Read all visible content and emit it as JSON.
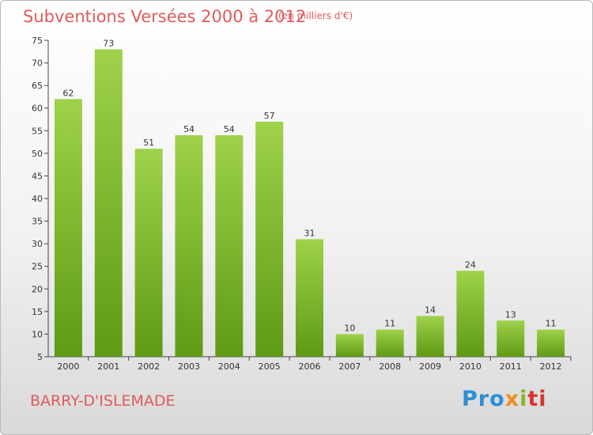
{
  "header": {
    "title": "Subventions Versées 2000 à 2012",
    "unit": "(en milliers d'€)"
  },
  "footer": {
    "commune": "BARRY-D'ISLEMADE",
    "logo_parts": [
      "Pro",
      "x",
      "i",
      "ti"
    ]
  },
  "colors": {
    "bar_top": "#9ed24a",
    "bar_bottom": "#5f9a14",
    "title": "#e05a5a"
  },
  "chart_data": {
    "type": "bar",
    "title": "Subventions Versées 2000 à 2012",
    "subtitle": "(en milliers d'€)",
    "xlabel": "",
    "ylabel": "",
    "categories": [
      "2000",
      "2001",
      "2002",
      "2003",
      "2004",
      "2005",
      "2006",
      "2007",
      "2008",
      "2009",
      "2010",
      "2011",
      "2012"
    ],
    "values": [
      62,
      73,
      51,
      54,
      54,
      57,
      31,
      10,
      11,
      14,
      24,
      13,
      11
    ],
    "ylim": [
      5,
      75
    ],
    "yticks": [
      5,
      10,
      15,
      20,
      25,
      30,
      35,
      40,
      45,
      50,
      55,
      60,
      65,
      70,
      75
    ],
    "grid": false,
    "data_labels": true
  }
}
